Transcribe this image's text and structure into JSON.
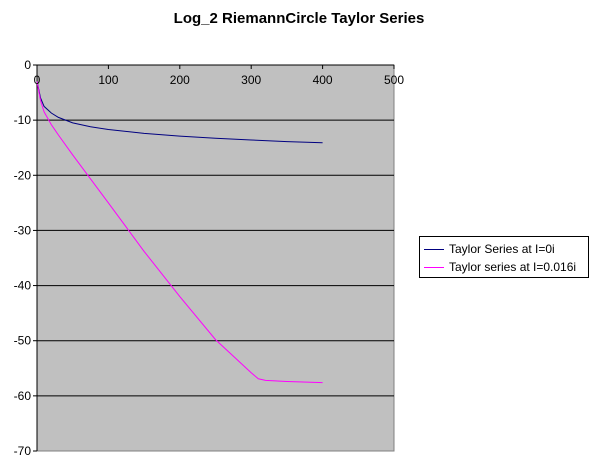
{
  "chart_data": {
    "type": "line",
    "title": "Log_2 RiemannCircle Taylor Series",
    "xlabel": "",
    "ylabel": "",
    "xlim": [
      0,
      500
    ],
    "ylim": [
      -70,
      0
    ],
    "x_ticks": [
      0,
      100,
      200,
      300,
      400,
      500
    ],
    "y_ticks": [
      0,
      -10,
      -20,
      -30,
      -40,
      -50,
      -60,
      -70
    ],
    "grid": "horizontal",
    "plot_background": "#c0c0c0",
    "legend_position": "right",
    "series": [
      {
        "name": "Taylor Series at I=0i",
        "color": "#000080",
        "points": [
          [
            0,
            -3
          ],
          [
            5,
            -6
          ],
          [
            10,
            -7.5
          ],
          [
            20,
            -8.7
          ],
          [
            30,
            -9.5
          ],
          [
            50,
            -10.5
          ],
          [
            75,
            -11.2
          ],
          [
            100,
            -11.7
          ],
          [
            150,
            -12.4
          ],
          [
            200,
            -12.9
          ],
          [
            250,
            -13.3
          ],
          [
            300,
            -13.6
          ],
          [
            350,
            -13.9
          ],
          [
            400,
            -14.1
          ]
        ]
      },
      {
        "name": "Taylor series at I=0.016i",
        "color": "#ff00ff",
        "points": [
          [
            0,
            -3
          ],
          [
            5,
            -6.5
          ],
          [
            10,
            -8.5
          ],
          [
            20,
            -10.8
          ],
          [
            30,
            -12.7
          ],
          [
            50,
            -16.3
          ],
          [
            100,
            -25
          ],
          [
            150,
            -33.8
          ],
          [
            200,
            -42
          ],
          [
            250,
            -49.8
          ],
          [
            300,
            -55.8
          ],
          [
            310,
            -56.9
          ],
          [
            320,
            -57.2
          ],
          [
            350,
            -57.4
          ],
          [
            400,
            -57.6
          ]
        ]
      }
    ]
  }
}
